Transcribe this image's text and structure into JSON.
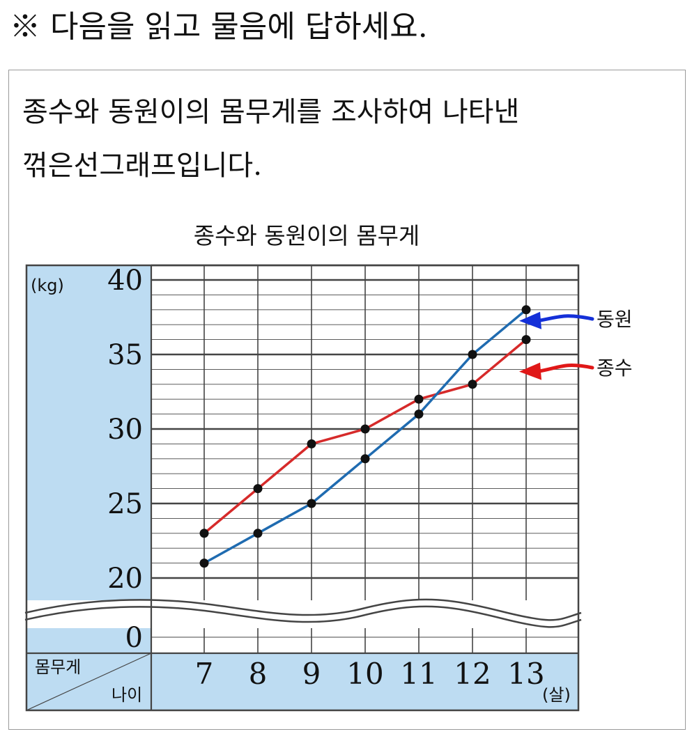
{
  "header": {
    "instruction": "※ 다음을 읽고 물음에 답하세요."
  },
  "problem": {
    "line1": "종수와 동원이의 몸무게를 조사하여 나타낸",
    "line2": "꺾은선그래프입니다."
  },
  "chart_data": {
    "type": "line",
    "title": "종수와 동원이의 몸무게",
    "unit_y": "(kg)",
    "unit_x": "(살)",
    "ylabel": "몸무게",
    "xlabel": "나이",
    "categories": [
      "7",
      "8",
      "9",
      "10",
      "11",
      "12",
      "13"
    ],
    "yticks": [
      "40",
      "35",
      "30",
      "25",
      "20",
      "0"
    ],
    "ylim": [
      20,
      40
    ],
    "axis_break": true,
    "minor_step": 1,
    "series": [
      {
        "name": "종수",
        "color": "#d62a2a",
        "values": [
          23,
          26,
          29,
          30,
          32,
          33,
          36
        ]
      },
      {
        "name": "동원",
        "color": "#1f6bb0",
        "values": [
          21,
          23,
          25,
          28,
          31,
          35,
          38
        ]
      }
    ],
    "annotations": [
      {
        "series": "동원",
        "text": "동원",
        "arrow_color": "#1430d8"
      },
      {
        "series": "종수",
        "text": "종수",
        "arrow_color": "#e01818"
      }
    ],
    "colors": {
      "panel": "#bddcf2",
      "grid": "#444444",
      "point": "#111111"
    }
  }
}
